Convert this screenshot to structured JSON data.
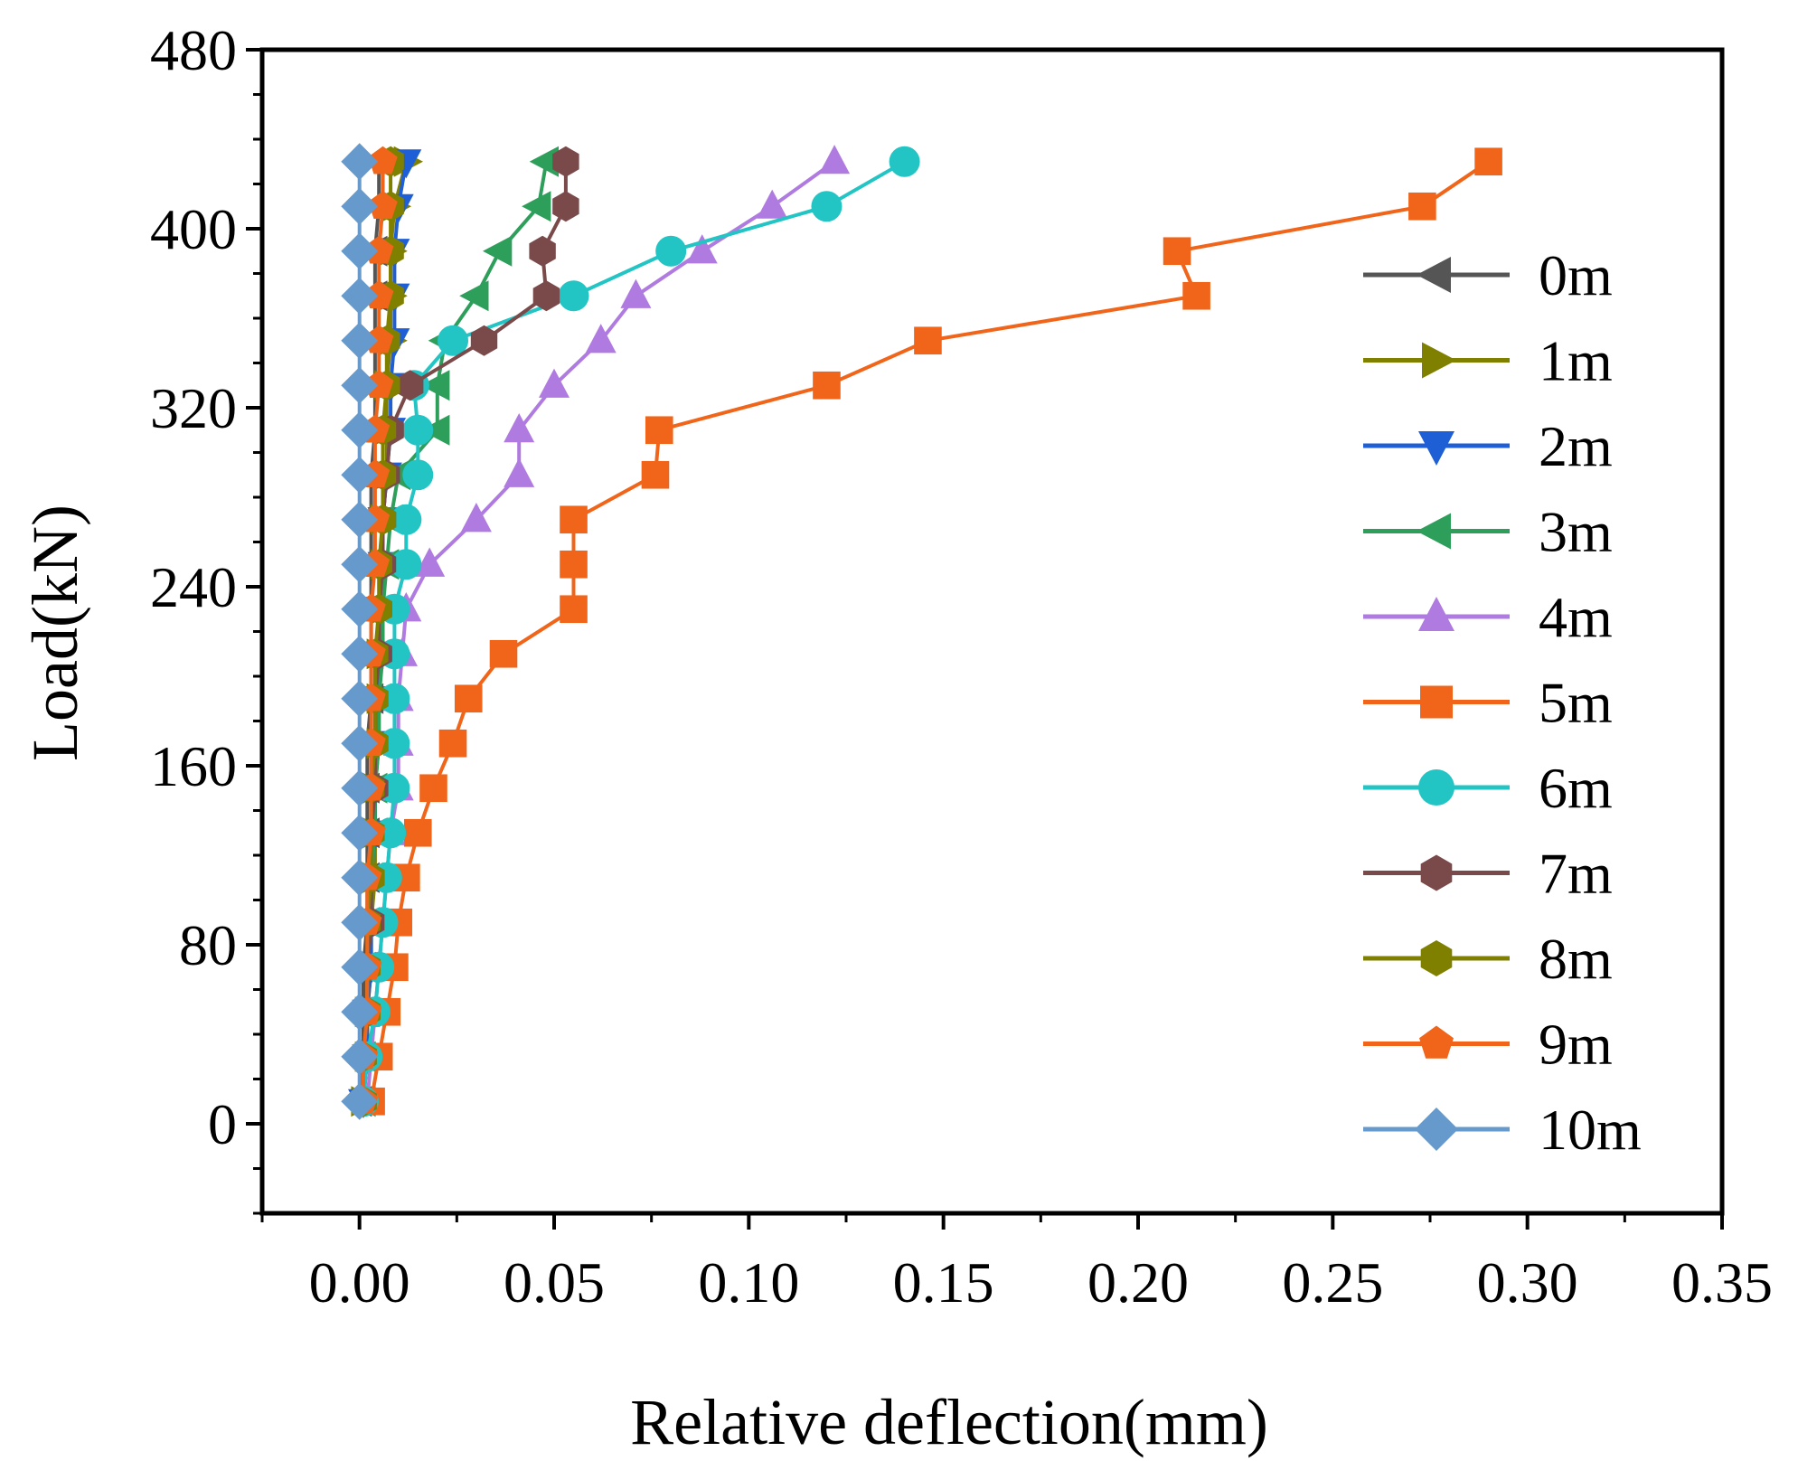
{
  "chart_data": {
    "type": "line",
    "title": "",
    "xlabel": "Relative deflection(mm)",
    "ylabel": "Load(kN)",
    "xlim": [
      -0.025,
      0.35
    ],
    "ylim": [
      -40,
      480
    ],
    "xticks": [
      0.0,
      0.05,
      0.1,
      0.15,
      0.2,
      0.25,
      0.3,
      0.35
    ],
    "xtick_labels": [
      "0.00",
      "0.05",
      "0.10",
      "0.15",
      "0.20",
      "0.25",
      "0.30",
      "0.35"
    ],
    "yticks": [
      0,
      80,
      160,
      240,
      320,
      400,
      480
    ],
    "ytick_labels": [
      "0",
      "80",
      "160",
      "240",
      "320",
      "400",
      "480"
    ],
    "legend_position": "right",
    "series": [
      {
        "name": "0m",
        "color": "#555555",
        "marker": "triangle-left",
        "points": [
          [
            0.0,
            10
          ],
          [
            0.001,
            30
          ],
          [
            0.001,
            50
          ],
          [
            0.001,
            70
          ],
          [
            0.002,
            90
          ],
          [
            0.002,
            110
          ],
          [
            0.002,
            130
          ],
          [
            0.002,
            150
          ],
          [
            0.002,
            170
          ],
          [
            0.003,
            190
          ],
          [
            0.003,
            210
          ],
          [
            0.003,
            230
          ],
          [
            0.003,
            250
          ],
          [
            0.003,
            270
          ],
          [
            0.003,
            290
          ],
          [
            0.004,
            310
          ],
          [
            0.004,
            330
          ],
          [
            0.004,
            350
          ],
          [
            0.004,
            370
          ],
          [
            0.004,
            390
          ],
          [
            0.005,
            410
          ],
          [
            0.005,
            430
          ]
        ]
      },
      {
        "name": "1m",
        "color": "#808000",
        "marker": "triangle-right",
        "points": [
          [
            0.001,
            10
          ],
          [
            0.002,
            30
          ],
          [
            0.002,
            50
          ],
          [
            0.003,
            70
          ],
          [
            0.003,
            90
          ],
          [
            0.004,
            110
          ],
          [
            0.004,
            130
          ],
          [
            0.004,
            150
          ],
          [
            0.005,
            170
          ],
          [
            0.005,
            190
          ],
          [
            0.005,
            210
          ],
          [
            0.006,
            230
          ],
          [
            0.006,
            250
          ],
          [
            0.006,
            270
          ],
          [
            0.007,
            290
          ],
          [
            0.007,
            310
          ],
          [
            0.007,
            330
          ],
          [
            0.008,
            350
          ],
          [
            0.008,
            370
          ],
          [
            0.008,
            390
          ],
          [
            0.009,
            410
          ],
          [
            0.012,
            430
          ]
        ]
      },
      {
        "name": "2m",
        "color": "#1f5fd6",
        "marker": "triangle-down",
        "points": [
          [
            0.001,
            10
          ],
          [
            0.002,
            30
          ],
          [
            0.002,
            50
          ],
          [
            0.003,
            70
          ],
          [
            0.003,
            90
          ],
          [
            0.003,
            110
          ],
          [
            0.004,
            130
          ],
          [
            0.004,
            150
          ],
          [
            0.004,
            170
          ],
          [
            0.005,
            190
          ],
          [
            0.005,
            210
          ],
          [
            0.005,
            230
          ],
          [
            0.006,
            250
          ],
          [
            0.006,
            270
          ],
          [
            0.007,
            290
          ],
          [
            0.008,
            310
          ],
          [
            0.008,
            330
          ],
          [
            0.009,
            350
          ],
          [
            0.009,
            370
          ],
          [
            0.009,
            390
          ],
          [
            0.01,
            410
          ],
          [
            0.012,
            430
          ]
        ]
      },
      {
        "name": "3m",
        "color": "#2e9e5b",
        "marker": "triangle-left",
        "points": [
          [
            0.001,
            10
          ],
          [
            0.001,
            30
          ],
          [
            0.002,
            50
          ],
          [
            0.002,
            70
          ],
          [
            0.003,
            90
          ],
          [
            0.003,
            110
          ],
          [
            0.004,
            130
          ],
          [
            0.004,
            150
          ],
          [
            0.005,
            170
          ],
          [
            0.005,
            190
          ],
          [
            0.006,
            210
          ],
          [
            0.006,
            230
          ],
          [
            0.007,
            250
          ],
          [
            0.008,
            270
          ],
          [
            0.01,
            290
          ],
          [
            0.02,
            310
          ],
          [
            0.02,
            330
          ],
          [
            0.022,
            350
          ],
          [
            0.03,
            370
          ],
          [
            0.036,
            390
          ],
          [
            0.046,
            410
          ],
          [
            0.048,
            430
          ]
        ]
      },
      {
        "name": "4m",
        "color": "#b07be0",
        "marker": "triangle-up",
        "points": [
          [
            0.002,
            10
          ],
          [
            0.003,
            30
          ],
          [
            0.004,
            50
          ],
          [
            0.005,
            70
          ],
          [
            0.006,
            90
          ],
          [
            0.007,
            110
          ],
          [
            0.008,
            130
          ],
          [
            0.01,
            150
          ],
          [
            0.01,
            170
          ],
          [
            0.01,
            190
          ],
          [
            0.011,
            210
          ],
          [
            0.012,
            230
          ],
          [
            0.018,
            250
          ],
          [
            0.03,
            270
          ],
          [
            0.041,
            290
          ],
          [
            0.041,
            310
          ],
          [
            0.05,
            330
          ],
          [
            0.062,
            350
          ],
          [
            0.071,
            370
          ],
          [
            0.088,
            390
          ],
          [
            0.106,
            410
          ],
          [
            0.122,
            430
          ]
        ]
      },
      {
        "name": "5m",
        "color": "#f0651a",
        "marker": "square",
        "points": [
          [
            0.003,
            10
          ],
          [
            0.005,
            30
          ],
          [
            0.007,
            50
          ],
          [
            0.009,
            70
          ],
          [
            0.01,
            90
          ],
          [
            0.012,
            110
          ],
          [
            0.015,
            130
          ],
          [
            0.019,
            150
          ],
          [
            0.024,
            170
          ],
          [
            0.028,
            190
          ],
          [
            0.037,
            210
          ],
          [
            0.055,
            230
          ],
          [
            0.055,
            250
          ],
          [
            0.055,
            270
          ],
          [
            0.076,
            290
          ],
          [
            0.077,
            310
          ],
          [
            0.12,
            330
          ],
          [
            0.146,
            350
          ],
          [
            0.215,
            370
          ],
          [
            0.21,
            390
          ],
          [
            0.273,
            410
          ],
          [
            0.29,
            430
          ]
        ]
      },
      {
        "name": "6m",
        "color": "#22c4c4",
        "marker": "circle",
        "points": [
          [
            0.001,
            10
          ],
          [
            0.002,
            30
          ],
          [
            0.004,
            50
          ],
          [
            0.005,
            70
          ],
          [
            0.006,
            90
          ],
          [
            0.007,
            110
          ],
          [
            0.008,
            130
          ],
          [
            0.009,
            150
          ],
          [
            0.009,
            170
          ],
          [
            0.009,
            190
          ],
          [
            0.009,
            210
          ],
          [
            0.009,
            230
          ],
          [
            0.012,
            250
          ],
          [
            0.012,
            270
          ],
          [
            0.015,
            290
          ],
          [
            0.015,
            310
          ],
          [
            0.014,
            330
          ],
          [
            0.024,
            350
          ],
          [
            0.055,
            370
          ],
          [
            0.08,
            390
          ],
          [
            0.12,
            410
          ],
          [
            0.14,
            430
          ]
        ]
      },
      {
        "name": "7m",
        "color": "#7a4a4a",
        "marker": "hexagon",
        "points": [
          [
            0.001,
            10
          ],
          [
            0.001,
            30
          ],
          [
            0.002,
            50
          ],
          [
            0.002,
            70
          ],
          [
            0.003,
            90
          ],
          [
            0.003,
            110
          ],
          [
            0.003,
            130
          ],
          [
            0.004,
            150
          ],
          [
            0.004,
            170
          ],
          [
            0.004,
            190
          ],
          [
            0.005,
            210
          ],
          [
            0.005,
            230
          ],
          [
            0.006,
            250
          ],
          [
            0.006,
            270
          ],
          [
            0.007,
            290
          ],
          [
            0.008,
            310
          ],
          [
            0.013,
            330
          ],
          [
            0.032,
            350
          ],
          [
            0.048,
            370
          ],
          [
            0.047,
            390
          ],
          [
            0.053,
            410
          ],
          [
            0.053,
            430
          ]
        ]
      },
      {
        "name": "8m",
        "color": "#808000",
        "marker": "hexagon",
        "points": [
          [
            0.001,
            10
          ],
          [
            0.001,
            30
          ],
          [
            0.002,
            50
          ],
          [
            0.002,
            70
          ],
          [
            0.002,
            90
          ],
          [
            0.003,
            110
          ],
          [
            0.003,
            130
          ],
          [
            0.003,
            150
          ],
          [
            0.004,
            170
          ],
          [
            0.004,
            190
          ],
          [
            0.004,
            210
          ],
          [
            0.005,
            230
          ],
          [
            0.005,
            250
          ],
          [
            0.006,
            270
          ],
          [
            0.006,
            290
          ],
          [
            0.006,
            310
          ],
          [
            0.007,
            330
          ],
          [
            0.007,
            350
          ],
          [
            0.008,
            370
          ],
          [
            0.008,
            390
          ],
          [
            0.008,
            410
          ],
          [
            0.008,
            430
          ]
        ]
      },
      {
        "name": "9m",
        "color": "#f0651a",
        "marker": "pentagon",
        "points": [
          [
            0.001,
            10
          ],
          [
            0.001,
            30
          ],
          [
            0.002,
            50
          ],
          [
            0.002,
            70
          ],
          [
            0.002,
            90
          ],
          [
            0.002,
            110
          ],
          [
            0.003,
            130
          ],
          [
            0.003,
            150
          ],
          [
            0.003,
            170
          ],
          [
            0.003,
            190
          ],
          [
            0.003,
            210
          ],
          [
            0.003,
            230
          ],
          [
            0.004,
            250
          ],
          [
            0.004,
            270
          ],
          [
            0.004,
            290
          ],
          [
            0.004,
            310
          ],
          [
            0.005,
            330
          ],
          [
            0.005,
            350
          ],
          [
            0.005,
            370
          ],
          [
            0.005,
            390
          ],
          [
            0.006,
            410
          ],
          [
            0.006,
            430
          ]
        ]
      },
      {
        "name": "10m",
        "color": "#6699cc",
        "marker": "diamond",
        "points": [
          [
            0.0,
            10
          ],
          [
            0.0,
            30
          ],
          [
            0.0,
            50
          ],
          [
            0.0,
            70
          ],
          [
            0.0,
            90
          ],
          [
            0.0,
            110
          ],
          [
            0.0,
            130
          ],
          [
            0.0,
            150
          ],
          [
            0.0,
            170
          ],
          [
            0.0,
            190
          ],
          [
            0.0,
            210
          ],
          [
            0.0,
            230
          ],
          [
            0.0,
            250
          ],
          [
            0.0,
            270
          ],
          [
            0.0,
            290
          ],
          [
            0.0,
            310
          ],
          [
            0.0,
            330
          ],
          [
            0.0,
            350
          ],
          [
            0.0,
            370
          ],
          [
            0.0,
            390
          ],
          [
            0.0,
            410
          ],
          [
            0.0,
            430
          ]
        ]
      }
    ]
  }
}
